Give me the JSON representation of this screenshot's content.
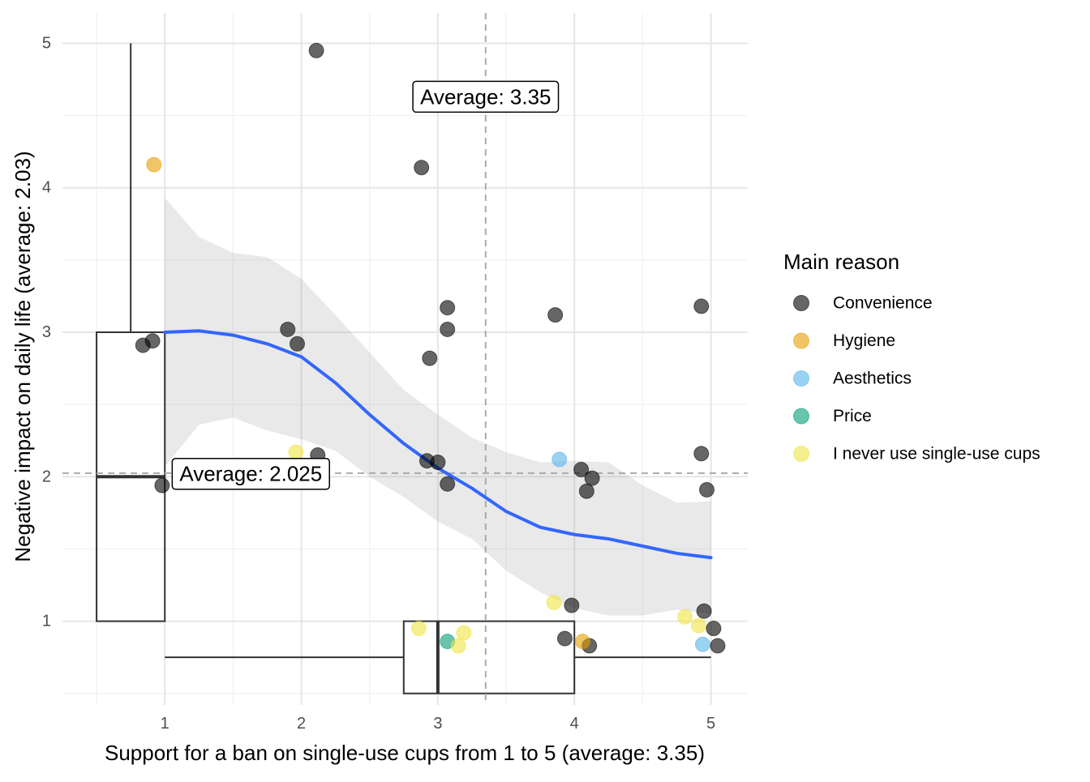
{
  "chart_data": {
    "type": "scatter",
    "xlabel": "Support for a ban on single-use cups from 1 to 5 (average: 3.35)",
    "ylabel": "Negative impact on daily life (average: 2.03)",
    "xlim": [
      0.25,
      5.27
    ],
    "ylim": [
      0.42,
      5.21
    ],
    "x_ticks": [
      1,
      2,
      3,
      4,
      5
    ],
    "y_ticks": [
      1,
      2,
      3,
      4,
      5
    ],
    "grid": true,
    "legend": {
      "title": "Main reason",
      "placement": "right",
      "entries": [
        {
          "name": "Convenience",
          "color": "#000000"
        },
        {
          "name": "Hygiene",
          "color": "#E69F00"
        },
        {
          "name": "Aesthetics",
          "color": "#56B4E9"
        },
        {
          "name": "Price",
          "color": "#009E73"
        },
        {
          "name": "I never use single-use cups",
          "color": "#F0E442"
        }
      ]
    },
    "series": [
      {
        "name": "Convenience",
        "color": "#000000",
        "points": [
          [
            2.11,
            4.95
          ],
          [
            2.88,
            4.14
          ],
          [
            0.84,
            2.91
          ],
          [
            0.91,
            2.94
          ],
          [
            0.98,
            1.94
          ],
          [
            1.9,
            3.02
          ],
          [
            1.97,
            2.92
          ],
          [
            2.12,
            2.15
          ],
          [
            2.92,
            2.11
          ],
          [
            2.94,
            2.82
          ],
          [
            3.0,
            2.1
          ],
          [
            3.07,
            3.02
          ],
          [
            3.07,
            3.17
          ],
          [
            3.07,
            1.95
          ],
          [
            3.86,
            3.12
          ],
          [
            3.93,
            0.88
          ],
          [
            3.98,
            1.11
          ],
          [
            4.05,
            2.05
          ],
          [
            4.09,
            1.9
          ],
          [
            4.13,
            1.99
          ],
          [
            4.11,
            0.83
          ],
          [
            4.93,
            3.18
          ],
          [
            4.93,
            2.16
          ],
          [
            4.97,
            1.91
          ],
          [
            4.95,
            1.07
          ],
          [
            5.02,
            0.95
          ],
          [
            5.05,
            0.83
          ]
        ]
      },
      {
        "name": "Hygiene",
        "color": "#E69F00",
        "points": [
          [
            0.92,
            4.16
          ],
          [
            4.06,
            0.86
          ]
        ]
      },
      {
        "name": "Aesthetics",
        "color": "#56B4E9",
        "points": [
          [
            3.89,
            2.12
          ],
          [
            4.94,
            0.84
          ]
        ]
      },
      {
        "name": "Price",
        "color": "#009E73",
        "points": [
          [
            3.07,
            0.86
          ]
        ]
      },
      {
        "name": "I never use single-use cups",
        "color": "#F0E442",
        "points": [
          [
            1.96,
            2.17
          ],
          [
            2.86,
            0.95
          ],
          [
            3.15,
            0.83
          ],
          [
            3.19,
            0.92
          ],
          [
            3.85,
            1.13
          ],
          [
            4.81,
            1.03
          ],
          [
            4.91,
            0.97
          ]
        ]
      }
    ],
    "smooth": {
      "color": "#3366FF",
      "points": [
        [
          1.0,
          3.0
        ],
        [
          1.25,
          3.01
        ],
        [
          1.5,
          2.98
        ],
        [
          1.75,
          2.92
        ],
        [
          2.0,
          2.83
        ],
        [
          2.25,
          2.65
        ],
        [
          2.5,
          2.43
        ],
        [
          2.75,
          2.23
        ],
        [
          3.0,
          2.06
        ],
        [
          3.25,
          1.92
        ],
        [
          3.5,
          1.76
        ],
        [
          3.75,
          1.65
        ],
        [
          4.0,
          1.6
        ],
        [
          4.25,
          1.57
        ],
        [
          4.5,
          1.52
        ],
        [
          4.75,
          1.47
        ],
        [
          5.0,
          1.44
        ]
      ],
      "ci_upper": [
        [
          1.0,
          3.93
        ],
        [
          1.25,
          3.66
        ],
        [
          1.5,
          3.55
        ],
        [
          1.75,
          3.52
        ],
        [
          2.0,
          3.37
        ],
        [
          2.25,
          3.12
        ],
        [
          2.5,
          2.86
        ],
        [
          2.75,
          2.6
        ],
        [
          3.0,
          2.43
        ],
        [
          3.25,
          2.27
        ],
        [
          3.5,
          2.17
        ],
        [
          3.75,
          2.1
        ],
        [
          4.0,
          2.11
        ],
        [
          4.25,
          2.1
        ],
        [
          4.5,
          1.94
        ],
        [
          4.75,
          1.82
        ],
        [
          5.0,
          1.83
        ]
      ],
      "ci_lower": [
        [
          1.0,
          2.07
        ],
        [
          1.25,
          2.36
        ],
        [
          1.5,
          2.41
        ],
        [
          1.75,
          2.32
        ],
        [
          2.0,
          2.26
        ],
        [
          2.25,
          2.18
        ],
        [
          2.5,
          2.0
        ],
        [
          2.75,
          1.86
        ],
        [
          3.0,
          1.69
        ],
        [
          3.25,
          1.57
        ],
        [
          3.5,
          1.35
        ],
        [
          3.75,
          1.2
        ],
        [
          4.0,
          1.09
        ],
        [
          4.25,
          1.04
        ],
        [
          4.5,
          1.04
        ],
        [
          4.75,
          1.08
        ],
        [
          5.0,
          1.05
        ]
      ]
    },
    "boxplot_x": {
      "at_y": 0.75,
      "min": 1,
      "q1": 2.75,
      "median": 3,
      "q3": 4,
      "max": 5,
      "height": 0.5
    },
    "boxplot_y": {
      "at_x": 0.75,
      "min": 1,
      "q1": 1,
      "median": 2,
      "q3": 3,
      "max": 5,
      "width": 0.5
    },
    "reference_lines": {
      "x_mean": 3.35,
      "y_mean": 2.025
    },
    "annotations": [
      {
        "text": "Average: 3.35",
        "x": 3.35,
        "y": 4.63
      },
      {
        "text": "Average: 2.025",
        "x": 1.63,
        "y": 2.02
      }
    ]
  }
}
